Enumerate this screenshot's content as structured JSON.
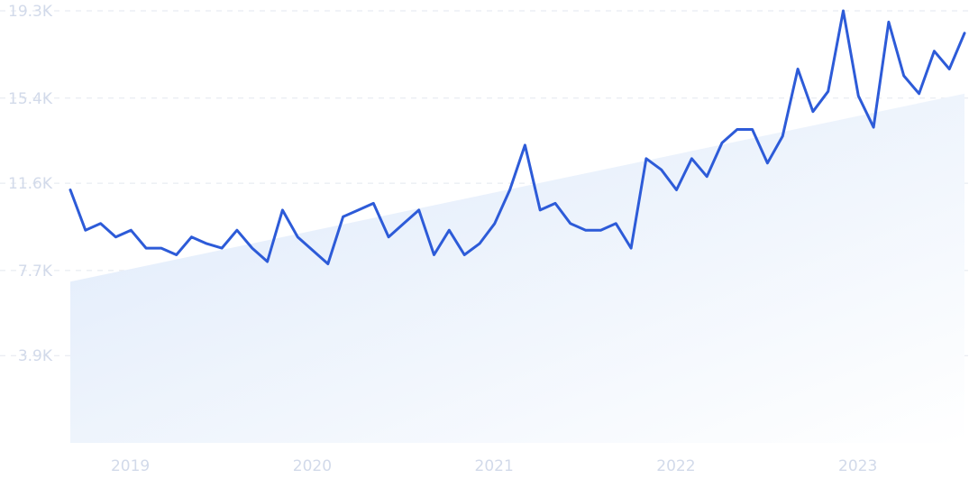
{
  "chart_data": {
    "type": "line",
    "title": "",
    "xlabel": "",
    "ylabel": "",
    "x_tick_labels": [
      "2019",
      "2020",
      "2021",
      "2022",
      "2023"
    ],
    "y_tick_labels": [
      "3.9K",
      "7.7K",
      "11.6K",
      "15.4K",
      "19.3K"
    ],
    "y_tick_values": [
      3900,
      7700,
      11600,
      15400,
      19300
    ],
    "ylim": [
      0,
      19300
    ],
    "xlim": [
      "2018-11",
      "2023-10"
    ],
    "grid": true,
    "legend": "none",
    "colors": {
      "line": "#2d5bd8",
      "trend_fill_top": "#dde9fa",
      "trend_fill_bottom": "#ffffff",
      "grid": "#e3e7ef",
      "tick_text": "#d2daea"
    },
    "trend": {
      "start": {
        "x": "2018-11",
        "y": 7200
      },
      "end": {
        "x": "2023-10",
        "y": 15600
      }
    },
    "series": [
      {
        "x": [
          "2018-11",
          "2018-12",
          "2019-01",
          "2019-02",
          "2019-03",
          "2019-04",
          "2019-05",
          "2019-06",
          "2019-07",
          "2019-08",
          "2019-09",
          "2019-10",
          "2019-11",
          "2019-12",
          "2020-01",
          "2020-02",
          "2020-03",
          "2020-04",
          "2020-05",
          "2020-06",
          "2020-07",
          "2020-08",
          "2020-09",
          "2020-10",
          "2020-11",
          "2020-12",
          "2021-01",
          "2021-02",
          "2021-03",
          "2021-04",
          "2021-05",
          "2021-06",
          "2021-07",
          "2021-08",
          "2021-09",
          "2021-10",
          "2021-11",
          "2021-12",
          "2022-01",
          "2022-02",
          "2022-03",
          "2022-04",
          "2022-05",
          "2022-06",
          "2022-07",
          "2022-08",
          "2022-09",
          "2022-10",
          "2022-11",
          "2022-12",
          "2023-01",
          "2023-02",
          "2023-03",
          "2023-04",
          "2023-05",
          "2023-06",
          "2023-07",
          "2023-08",
          "2023-09",
          "2023-10"
        ],
        "values": [
          11300,
          9500,
          9800,
          9200,
          9500,
          8700,
          8700,
          8400,
          9200,
          8900,
          8700,
          9500,
          8700,
          8100,
          10400,
          9200,
          8600,
          8000,
          10100,
          10400,
          10700,
          9200,
          9800,
          10400,
          8400,
          9500,
          8400,
          8900,
          9800,
          11300,
          13300,
          10400,
          10700,
          9800,
          9500,
          9500,
          9800,
          8700,
          12700,
          12200,
          11300,
          12700,
          11900,
          13400,
          14000,
          14000,
          12500,
          13700,
          16700,
          14800,
          15700,
          19300,
          15500,
          14100,
          18800,
          16400,
          15600,
          17500,
          16700,
          18300
        ]
      }
    ]
  }
}
